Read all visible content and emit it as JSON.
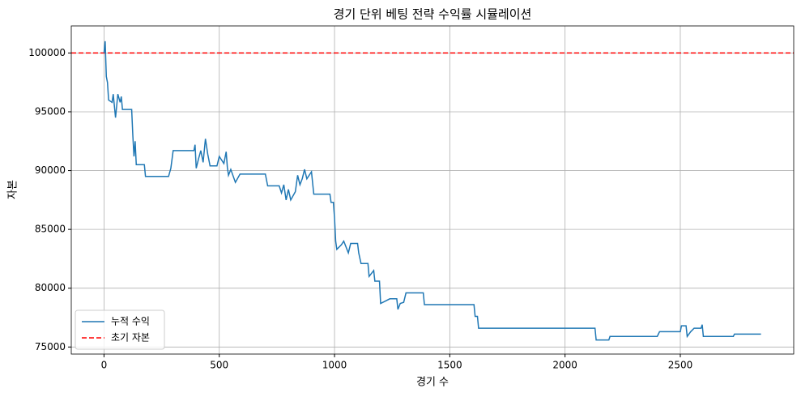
{
  "chart_data": {
    "type": "line",
    "title": "경기 단위 베팅 전략 수익률 시뮬레이션",
    "x_label": "경기 수",
    "y_label": "자본",
    "xlim": [
      -142,
      2992
    ],
    "ylim": [
      74400,
      102300
    ],
    "xticks": [
      0,
      500,
      1000,
      1500,
      2000,
      2500
    ],
    "yticks": [
      75000,
      80000,
      85000,
      90000,
      95000,
      100000
    ],
    "grid": true,
    "legend": "lower left",
    "series": [
      {
        "name": "누적 수익",
        "color": "#1f77b4",
        "x": [
          0,
          5,
          10,
          15,
          20,
          35,
          40,
          50,
          60,
          70,
          75,
          80,
          120,
          125,
          130,
          135,
          140,
          175,
          180,
          280,
          290,
          300,
          390,
          395,
          400,
          410,
          420,
          430,
          440,
          450,
          460,
          490,
          500,
          520,
          530,
          535,
          540,
          550,
          570,
          590,
          700,
          710,
          760,
          770,
          780,
          790,
          800,
          810,
          830,
          840,
          850,
          860,
          870,
          880,
          900,
          910,
          980,
          985,
          995,
          1000,
          1005,
          1010,
          1030,
          1040,
          1060,
          1070,
          1100,
          1105,
          1115,
          1145,
          1150,
          1170,
          1175,
          1195,
          1200,
          1220,
          1240,
          1270,
          1275,
          1285,
          1300,
          1310,
          1385,
          1390,
          1605,
          1610,
          1620,
          1625,
          2130,
          2135,
          2190,
          2195,
          2400,
          2410,
          2500,
          2505,
          2525,
          2530,
          2545,
          2560,
          2590,
          2595,
          2600,
          2730,
          2735,
          2850
        ],
        "values": [
          100000,
          101000,
          98000,
          97500,
          96000,
          95800,
          96500,
          94500,
          96500,
          95800,
          96300,
          95200,
          95200,
          93000,
          91200,
          92500,
          90500,
          90500,
          89500,
          89500,
          90200,
          91700,
          91700,
          92200,
          90200,
          91000,
          91700,
          90700,
          92700,
          91400,
          90400,
          90400,
          91200,
          90600,
          91600,
          90300,
          89600,
          90100,
          89000,
          89700,
          89700,
          88700,
          88700,
          88100,
          88800,
          87500,
          88400,
          87500,
          88200,
          89600,
          88800,
          89300,
          90100,
          89300,
          89900,
          88000,
          88000,
          87300,
          87300,
          86000,
          84000,
          83300,
          83700,
          84000,
          83000,
          83800,
          83800,
          83000,
          82100,
          82100,
          81000,
          81500,
          80600,
          80600,
          78700,
          78900,
          79100,
          79100,
          78200,
          78700,
          78800,
          79600,
          79600,
          78600,
          78600,
          77600,
          77600,
          76600,
          76600,
          75600,
          75600,
          75900,
          75900,
          76300,
          76300,
          76800,
          76800,
          75900,
          76300,
          76600,
          76600,
          76900,
          75900,
          75900,
          76100,
          76100
        ]
      }
    ],
    "reference_line": {
      "name": "초기 자본",
      "value": 100000,
      "color": "red"
    }
  }
}
